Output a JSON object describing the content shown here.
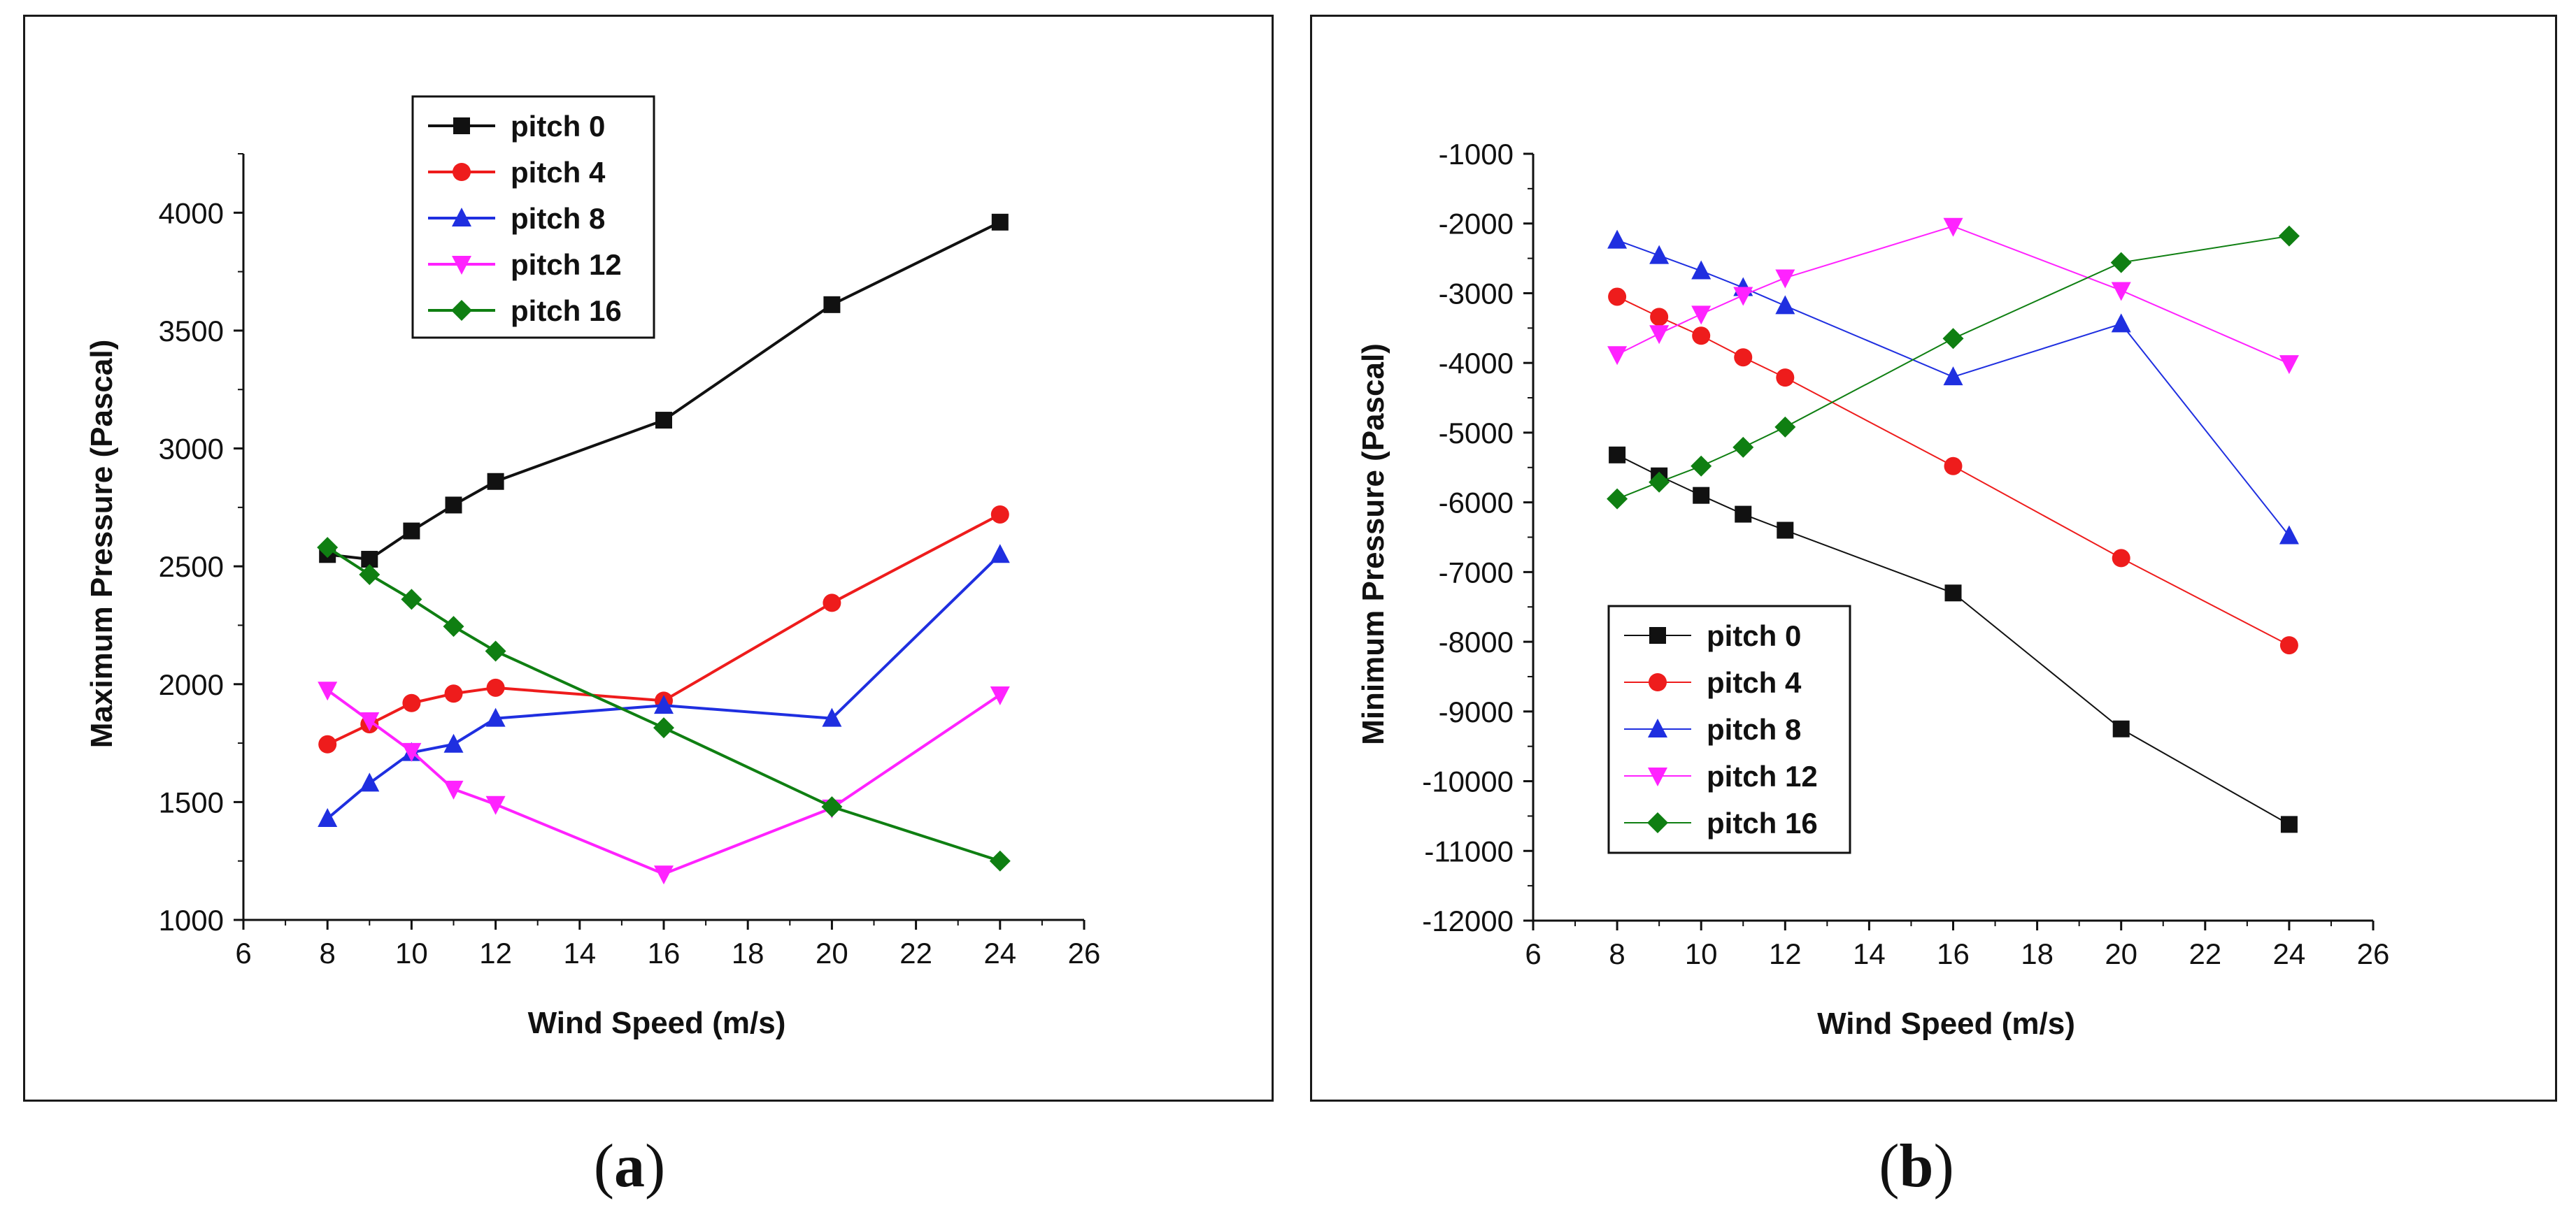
{
  "colors": {
    "pitch0": "#111111",
    "pitch4": "#ee1c1c",
    "pitch8": "#1f2fe0",
    "pitch12": "#ff22ff",
    "pitch16": "#0f7f12"
  },
  "captions": {
    "a_open": "(",
    "a_letter": "a",
    "a_close": ")",
    "b_open": "(",
    "b_letter": "b",
    "b_close": ")"
  },
  "chart_data": [
    {
      "id": "a",
      "type": "line",
      "title": "",
      "xlabel": "Wind Speed (m/s)",
      "ylabel": "Maximum Pressure (Pascal)",
      "xlim": [
        6,
        26
      ],
      "ylim": [
        1000,
        4250
      ],
      "xticks": [
        6,
        8,
        10,
        12,
        14,
        16,
        18,
        20,
        22,
        24,
        26
      ],
      "yticks": [
        1000,
        1500,
        2000,
        2500,
        3000,
        3500,
        4000
      ],
      "legend_position": "top-center",
      "x": [
        8,
        9,
        10,
        11,
        12,
        16,
        20,
        24
      ],
      "series": [
        {
          "name": "pitch 0",
          "marker": "square",
          "color_key": "pitch0",
          "values": [
            2550,
            2530,
            2650,
            2760,
            2860,
            3120,
            3610,
            3960
          ]
        },
        {
          "name": "pitch 4",
          "marker": "circle",
          "color_key": "pitch4",
          "values": [
            1745,
            1830,
            1920,
            1960,
            1985,
            1930,
            2345,
            2720
          ]
        },
        {
          "name": "pitch 8",
          "marker": "triangle-up",
          "color_key": "pitch8",
          "values": [
            1430,
            1580,
            1710,
            1745,
            1855,
            1910,
            1855,
            2550
          ]
        },
        {
          "name": "pitch 12",
          "marker": "triangle-down",
          "color_key": "pitch12",
          "values": [
            1975,
            1845,
            1715,
            1555,
            1490,
            1195,
            1475,
            1955
          ]
        },
        {
          "name": "pitch 16",
          "marker": "diamond",
          "color_key": "pitch16",
          "values": [
            2580,
            2465,
            2360,
            2245,
            2140,
            1815,
            1480,
            1250
          ]
        }
      ]
    },
    {
      "id": "b",
      "type": "line",
      "title": "",
      "xlabel": "Wind Speed (m/s)",
      "ylabel": "Minimum Pressure (Pascal)",
      "xlim": [
        6,
        26
      ],
      "ylim": [
        -12000,
        -1000
      ],
      "xticks": [
        6,
        8,
        10,
        12,
        14,
        16,
        18,
        20,
        22,
        24,
        26
      ],
      "yticks": [
        -12000,
        -11000,
        -10000,
        -9000,
        -8000,
        -7000,
        -6000,
        -5000,
        -4000,
        -3000,
        -2000,
        -1000
      ],
      "legend_position": "bottom-left",
      "x": [
        8,
        9,
        10,
        11,
        12,
        16,
        20,
        24
      ],
      "series": [
        {
          "name": "pitch 0",
          "marker": "square",
          "color_key": "pitch0",
          "values": [
            -5320,
            -5620,
            -5900,
            -6170,
            -6400,
            -7300,
            -9250,
            -10620
          ]
        },
        {
          "name": "pitch 4",
          "marker": "circle",
          "color_key": "pitch4",
          "values": [
            -3050,
            -3340,
            -3610,
            -3920,
            -4210,
            -5480,
            -6800,
            -8050
          ]
        },
        {
          "name": "pitch 8",
          "marker": "triangle-up",
          "color_key": "pitch8",
          "values": [
            -2240,
            -2460,
            -2680,
            -2920,
            -3180,
            -4200,
            -3440,
            -6480
          ]
        },
        {
          "name": "pitch 12",
          "marker": "triangle-down",
          "color_key": "pitch12",
          "values": [
            -3880,
            -3580,
            -3300,
            -3030,
            -2780,
            -2040,
            -2960,
            -4010
          ]
        },
        {
          "name": "pitch 16",
          "marker": "diamond",
          "color_key": "pitch16",
          "values": [
            -5950,
            -5710,
            -5480,
            -5210,
            -4920,
            -3650,
            -2560,
            -2180
          ]
        }
      ]
    }
  ]
}
